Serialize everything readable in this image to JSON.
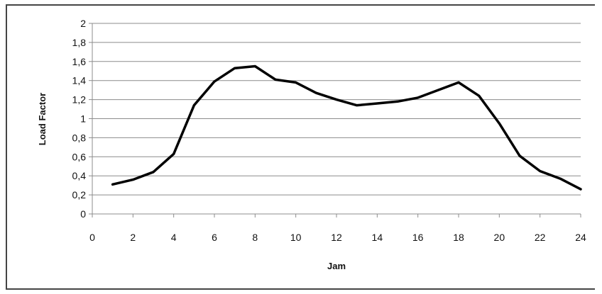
{
  "chart_data": {
    "type": "line",
    "title": "",
    "xlabel": "Jam",
    "ylabel": "Load Factor",
    "xlim": [
      0,
      24
    ],
    "ylim": [
      0,
      2
    ],
    "grid": true,
    "legend": "none",
    "x_ticks": [
      "0",
      "2",
      "4",
      "6",
      "8",
      "10",
      "12",
      "14",
      "16",
      "18",
      "20",
      "22",
      "24"
    ],
    "y_ticks": [
      "0",
      "0,2",
      "0,4",
      "0,6",
      "0,8",
      "1",
      "1,2",
      "1,4",
      "1,6",
      "1,8",
      "2"
    ],
    "series": [
      {
        "color": "#000000",
        "x": [
          1,
          2,
          3,
          4,
          5,
          6,
          7,
          8,
          9,
          10,
          11,
          12,
          13,
          14,
          15,
          16,
          17,
          18,
          19,
          20,
          21,
          22,
          23,
          24
        ],
        "y": [
          0.31,
          0.36,
          0.44,
          0.63,
          1.14,
          1.39,
          1.53,
          1.55,
          1.41,
          1.38,
          1.27,
          1.2,
          1.14,
          1.16,
          1.18,
          1.22,
          1.3,
          1.38,
          1.24,
          0.95,
          0.61,
          0.45,
          0.37,
          0.26
        ]
      }
    ]
  }
}
